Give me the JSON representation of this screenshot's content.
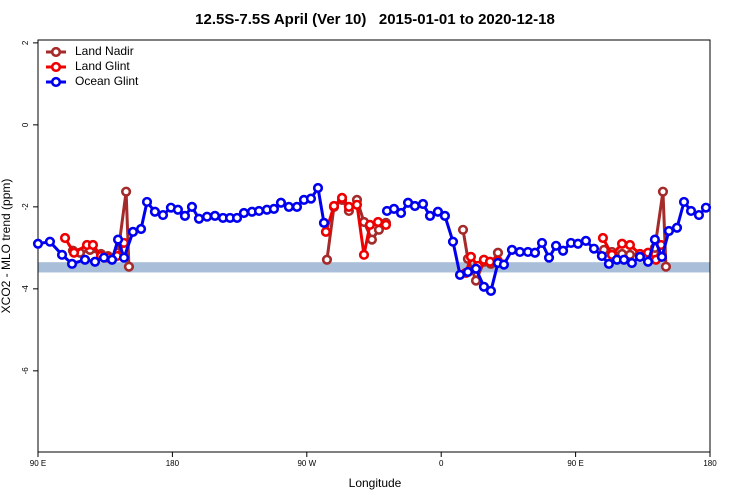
{
  "chart_data": {
    "type": "line",
    "title": "12.5S-7.5S April (Ver 10)   2015-01-01 to 2020-12-18",
    "xlabel": "Longitude",
    "ylabel": "XCO2 - MLO trend (ppm)",
    "xlim": [
      -270,
      180
    ],
    "ylim": [
      -7.98,
      2.07
    ],
    "xticks": [
      {
        "value": -270,
        "label": "90 E"
      },
      {
        "value": -180,
        "label": "180"
      },
      {
        "value": -90,
        "label": "90 W"
      },
      0,
      {
        "value": 90,
        "label": "90 E"
      },
      180
    ],
    "yticks": [
      -6,
      -4,
      -2,
      0,
      2
    ],
    "band": {
      "range": [
        -3.6,
        -3.35
      ],
      "color": "#a9bfd9"
    },
    "legend": "top-left",
    "series": [
      {
        "name": "Land Nadir",
        "color": "#a52a2a",
        "x": [
          -246.6,
          -241.9,
          -235.2,
          -227.8,
          -223.1,
          -216.4,
          -211.0,
          -209.1,
          null,
          -76.5,
          -71.8,
          -66.4,
          -61.8,
          -56.4,
          -51.7,
          -46.4,
          -41.7,
          -37.0,
          null,
          14.6,
          17.9,
          23.3,
          28.6,
          33.3,
          38.0,
          null,
          109.0,
          114.3,
          121.1,
          126.4,
          133.1,
          143.1,
          148.5,
          150.5
        ],
        "values": [
          -3.07,
          -3.12,
          -3.05,
          -3.15,
          -3.2,
          -3.12,
          -1.63,
          -3.46,
          null,
          -3.29,
          -2.0,
          -1.83,
          -2.1,
          -1.83,
          -2.37,
          -2.8,
          -2.56,
          -2.39,
          null,
          -2.56,
          -3.27,
          -3.8,
          -3.34,
          -3.39,
          -3.12,
          null,
          -3.05,
          -3.1,
          -3.15,
          -3.17,
          -3.15,
          -3.0,
          -1.63,
          -3.46
        ]
      },
      {
        "name": "Land Glint",
        "color": "#ee0000",
        "x": [
          -251.9,
          -245.9,
          -237.2,
          -233.2,
          -227.8,
          -223.1,
          -217.1,
          -212.4,
          null,
          -77.2,
          -71.8,
          -66.4,
          -61.8,
          -56.4,
          -51.7,
          -47.7,
          -42.3,
          -37.0,
          null,
          16.6,
          19.9,
          24.6,
          28.6,
          32.7,
          38.0,
          null,
          108.3,
          114.3,
          121.1,
          126.4,
          133.1,
          138.5,
          143.8,
          147.2
        ],
        "values": [
          -2.76,
          -3.12,
          -2.93,
          -2.93,
          -3.2,
          -3.24,
          -3.2,
          -2.88,
          null,
          -2.61,
          -1.98,
          -1.78,
          -2.0,
          -1.95,
          -3.17,
          -2.44,
          -2.37,
          -2.44,
          null,
          -3.61,
          -3.22,
          -3.44,
          -3.29,
          -3.34,
          -3.32,
          null,
          -2.76,
          -3.17,
          -2.9,
          -2.93,
          -3.15,
          -3.12,
          -3.29,
          -2.93
        ]
      },
      {
        "name": "Ocean Glint",
        "color": "#0000ee",
        "x": [
          -270.0,
          -262.0,
          -253.9,
          -247.2,
          -238.5,
          -231.8,
          -225.8,
          -220.4,
          -216.4,
          -212.4,
          -206.4,
          -201.0,
          -197.0,
          -191.7,
          -186.3,
          -181.0,
          -176.3,
          -171.6,
          -166.9,
          -162.2,
          -156.8,
          -151.5,
          -146.1,
          -141.4,
          -136.7,
          -132.1,
          -126.7,
          -122.0,
          -116.7,
          -112.0,
          -107.3,
          -102.0,
          -96.6,
          -91.9,
          -87.2,
          -82.5,
          -78.5,
          null,
          -36.3,
          -31.6,
          -26.9,
          -22.2,
          -17.6,
          -12.2,
          -7.5,
          -2.2,
          2.5,
          7.9,
          12.6,
          17.9,
          23.3,
          28.6,
          33.3,
          38.0,
          42.0,
          47.4,
          52.7,
          58.1,
          62.8,
          67.5,
          72.2,
          76.9,
          81.6,
          86.9,
          91.6,
          96.9,
          102.3,
          107.6,
          112.3,
          117.7,
          122.4,
          127.7,
          133.1,
          138.5,
          143.1,
          147.8,
          152.5,
          157.9,
          162.6,
          167.3,
          172.6,
          177.3
        ],
        "values": [
          -2.9,
          -2.85,
          -3.17,
          -3.39,
          -3.29,
          -3.34,
          -3.24,
          -3.29,
          -2.8,
          -3.24,
          -2.61,
          -2.54,
          -1.88,
          -2.12,
          -2.2,
          -2.02,
          -2.07,
          -2.22,
          -2.0,
          -2.29,
          -2.24,
          -2.22,
          -2.27,
          -2.27,
          -2.27,
          -2.15,
          -2.12,
          -2.1,
          -2.07,
          -2.05,
          -1.9,
          -2.0,
          -2.0,
          -1.83,
          -1.8,
          -1.54,
          -2.39,
          null,
          -2.1,
          -2.05,
          -2.15,
          -1.9,
          -1.98,
          -1.93,
          -2.22,
          -2.12,
          -2.22,
          -2.85,
          -3.66,
          -3.59,
          -3.51,
          -3.95,
          -4.05,
          -3.37,
          -3.41,
          -3.05,
          -3.1,
          -3.1,
          -3.12,
          -2.88,
          -3.24,
          -2.95,
          -3.07,
          -2.88,
          -2.9,
          -2.83,
          -3.02,
          -3.2,
          -3.39,
          -3.29,
          -3.29,
          -3.37,
          -3.22,
          -3.34,
          -2.8,
          -3.22,
          -2.59,
          -2.51,
          -1.88,
          -2.1,
          -2.2,
          -2.02
        ]
      }
    ]
  }
}
